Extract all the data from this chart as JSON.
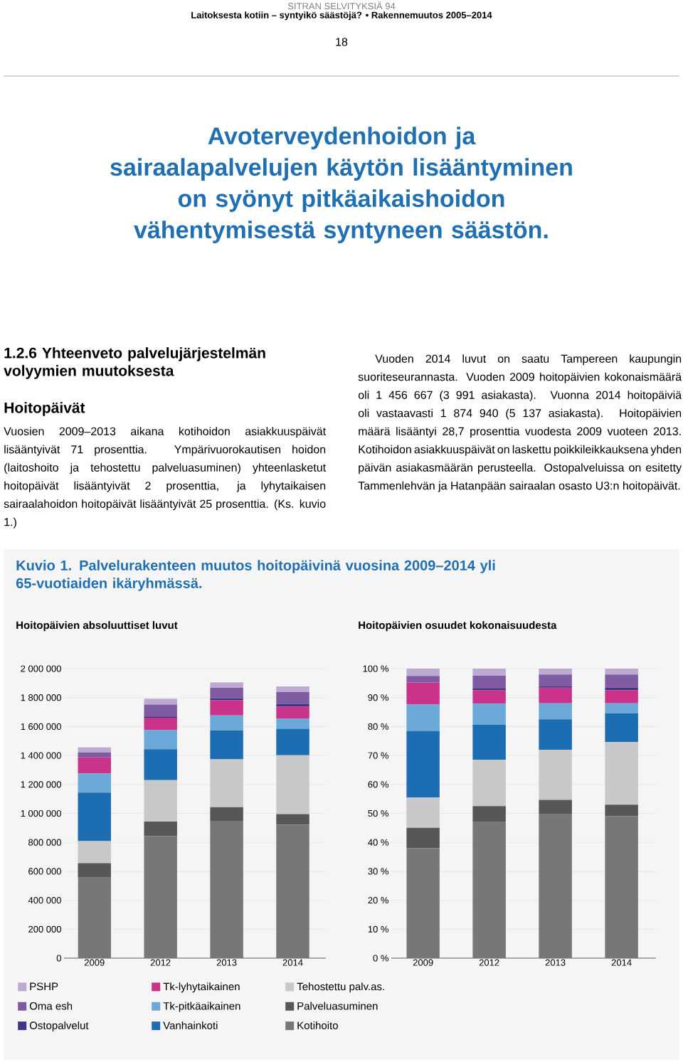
{
  "chart_data": [
    {
      "type": "bar",
      "title": "Kuvio 1. Palvelurakenteen muutos hoitopäivinä vuosina 2009–2014 yli 65-vuotiaiden ikäryhmässä.",
      "subtitle": "Hoitopäivien absoluuttiset luvut",
      "annotations": [
        "SITRAN SELVITYKSIÄ 94",
        "Laitoksesta kotiin – syntyikö säästöjä? • Rakennemuutos 2005–2014",
        "18",
        "Avoterveydenhoidon ja sairaalapalvelujen käytön lisääntyminen on syönyt pitkäaikaishoidon vähentymisestä syntyneen säästön.",
        "1.2.6 Yhteenveto palvelujärjestelmän volyymien muutoksesta",
        "Hoitopäivät",
        "Vuosien 2009–2013 aikana kotihoidon asiakkuuspäivät lisääntyivät 71 prosenttia. Ympärivuorokautisen hoidon (laitoshoito ja tehostettu palveluasuminen) yhteenlasketut hoitopäivät lisääntyivät 2 prosenttia, ja lyhytaikaisen sairaalahoidon hoitopäivät lisääntyivät 25 prosenttia. (Ks. kuvio 1.)",
        "Vuoden 2014 luvut on saatu Tampereen kaupungin suoriteseurannasta. Vuoden 2009 hoitopäivien kokonaismäärä oli 1 456 667 (3 991 asiakasta). Vuonna 2014 hoitopäiviä oli vastaavasti 1 874 940 (5 137 asiakasta). Hoitopäivien määrä lisääntyi 28,7 prosenttia vuodesta 2009 vuoteen 2013. Kotihoidon asiakkuuspäivät on laskettu poikkileikkauksena yhden päivän asiakasmäärän perusteella. Ostopalveluissa on esitetty Tammenlehvän ja Hatanpään sairaalan osasto U3:n hoitopäivät."
      ],
      "categories": [
        "2009",
        "2012",
        "2013",
        "2014"
      ],
      "stacked": true,
      "grid": "y",
      "legend": "bottom",
      "ylim": [
        0,
        2000000
      ],
      "yticks": [
        {
          "value": 0,
          "label": "0"
        },
        {
          "value": 200000,
          "label": "200 000"
        },
        {
          "value": 400000,
          "label": "400 000"
        },
        {
          "value": 600000,
          "label": "600 000"
        },
        {
          "value": 800000,
          "label": "800 000"
        },
        {
          "value": 1000000,
          "label": "1 000 000"
        },
        {
          "value": 1200000,
          "label": "1 200 000"
        },
        {
          "value": 1400000,
          "label": "1 400 000"
        },
        {
          "value": 1600000,
          "label": "1 600 000"
        },
        {
          "value": 1800000,
          "label": "1 800 000"
        },
        {
          "value": 2000000,
          "label": "2 000 000"
        }
      ],
      "series": [
        {
          "name": "Kotihoito",
          "color": "#777777",
          "values": [
            557000,
            844000,
            948000,
            923000
          ]
        },
        {
          "name": "Palveluasuminen",
          "color": "#575759",
          "values": [
            99000,
            99000,
            95000,
            72000
          ]
        },
        {
          "name": "Tehostettu palv.as.",
          "color": "#c8c8ca",
          "values": [
            152000,
            287000,
            331000,
            407000
          ]
        },
        {
          "name": "Vanhainkoti",
          "color": "#1c6db1",
          "values": [
            336000,
            214000,
            200000,
            183000
          ]
        },
        {
          "name": "Tk-pitkäaikainen",
          "color": "#6ba9d9",
          "values": [
            131000,
            131000,
            103000,
            69000
          ]
        },
        {
          "name": "Tk-lyhytaikainen",
          "color": "#c9348a",
          "values": [
            112000,
            86000,
            105000,
            85000
          ]
        },
        {
          "name": "Ostopalvelut",
          "color": "#3b3585",
          "values": [
            0,
            9000,
            13000,
            18000
          ]
        },
        {
          "name": "Oma esh",
          "color": "#7f5ba2",
          "values": [
            34000,
            82000,
            72000,
            81000
          ]
        },
        {
          "name": "PSHP",
          "color": "#bcaad3",
          "values": [
            35000,
            40000,
            38000,
            39000
          ]
        }
      ]
    },
    {
      "type": "bar",
      "title": "Hoitopäivien osuudet kokonaisuudesta",
      "categories": [
        "2009",
        "2012",
        "2013",
        "2014"
      ],
      "stacked": true,
      "grid": "y",
      "ylim": [
        0,
        100
      ],
      "yticks": [
        {
          "value": 0,
          "label": "0 %"
        },
        {
          "value": 10,
          "label": "10 %"
        },
        {
          "value": 20,
          "label": "20 %"
        },
        {
          "value": 30,
          "label": "30 %"
        },
        {
          "value": 40,
          "label": "40 %"
        },
        {
          "value": 50,
          "label": "50 %"
        },
        {
          "value": 60,
          "label": "60 %"
        },
        {
          "value": 70,
          "label": "70 %"
        },
        {
          "value": 80,
          "label": "80 %"
        },
        {
          "value": 90,
          "label": "90 %"
        },
        {
          "value": 100,
          "label": "100 %"
        }
      ],
      "series": [
        {
          "color": "#777777",
          "values": [
            38,
            47,
            49.7,
            49.1
          ]
        },
        {
          "color": "#575759",
          "values": [
            7,
            5.5,
            5,
            3.9
          ]
        },
        {
          "color": "#c8c8ca",
          "values": [
            10.5,
            16,
            17.3,
            21.7
          ]
        },
        {
          "color": "#1c6db1",
          "values": [
            23,
            12.1,
            10.5,
            9.8
          ]
        },
        {
          "color": "#6ba9d9",
          "values": [
            9.1,
            7.3,
            5.5,
            3.5
          ]
        },
        {
          "color": "#c9348a",
          "values": [
            7.6,
            4.6,
            5.4,
            4.6
          ]
        },
        {
          "color": "#3b3585",
          "values": [
            0,
            0.6,
            0.6,
            0.8
          ]
        },
        {
          "color": "#7f5ba2",
          "values": [
            2.3,
            4.5,
            4,
            4.6
          ]
        },
        {
          "color": "#bcaad3",
          "values": [
            2.6,
            2.4,
            2,
            2
          ]
        }
      ]
    }
  ]
}
